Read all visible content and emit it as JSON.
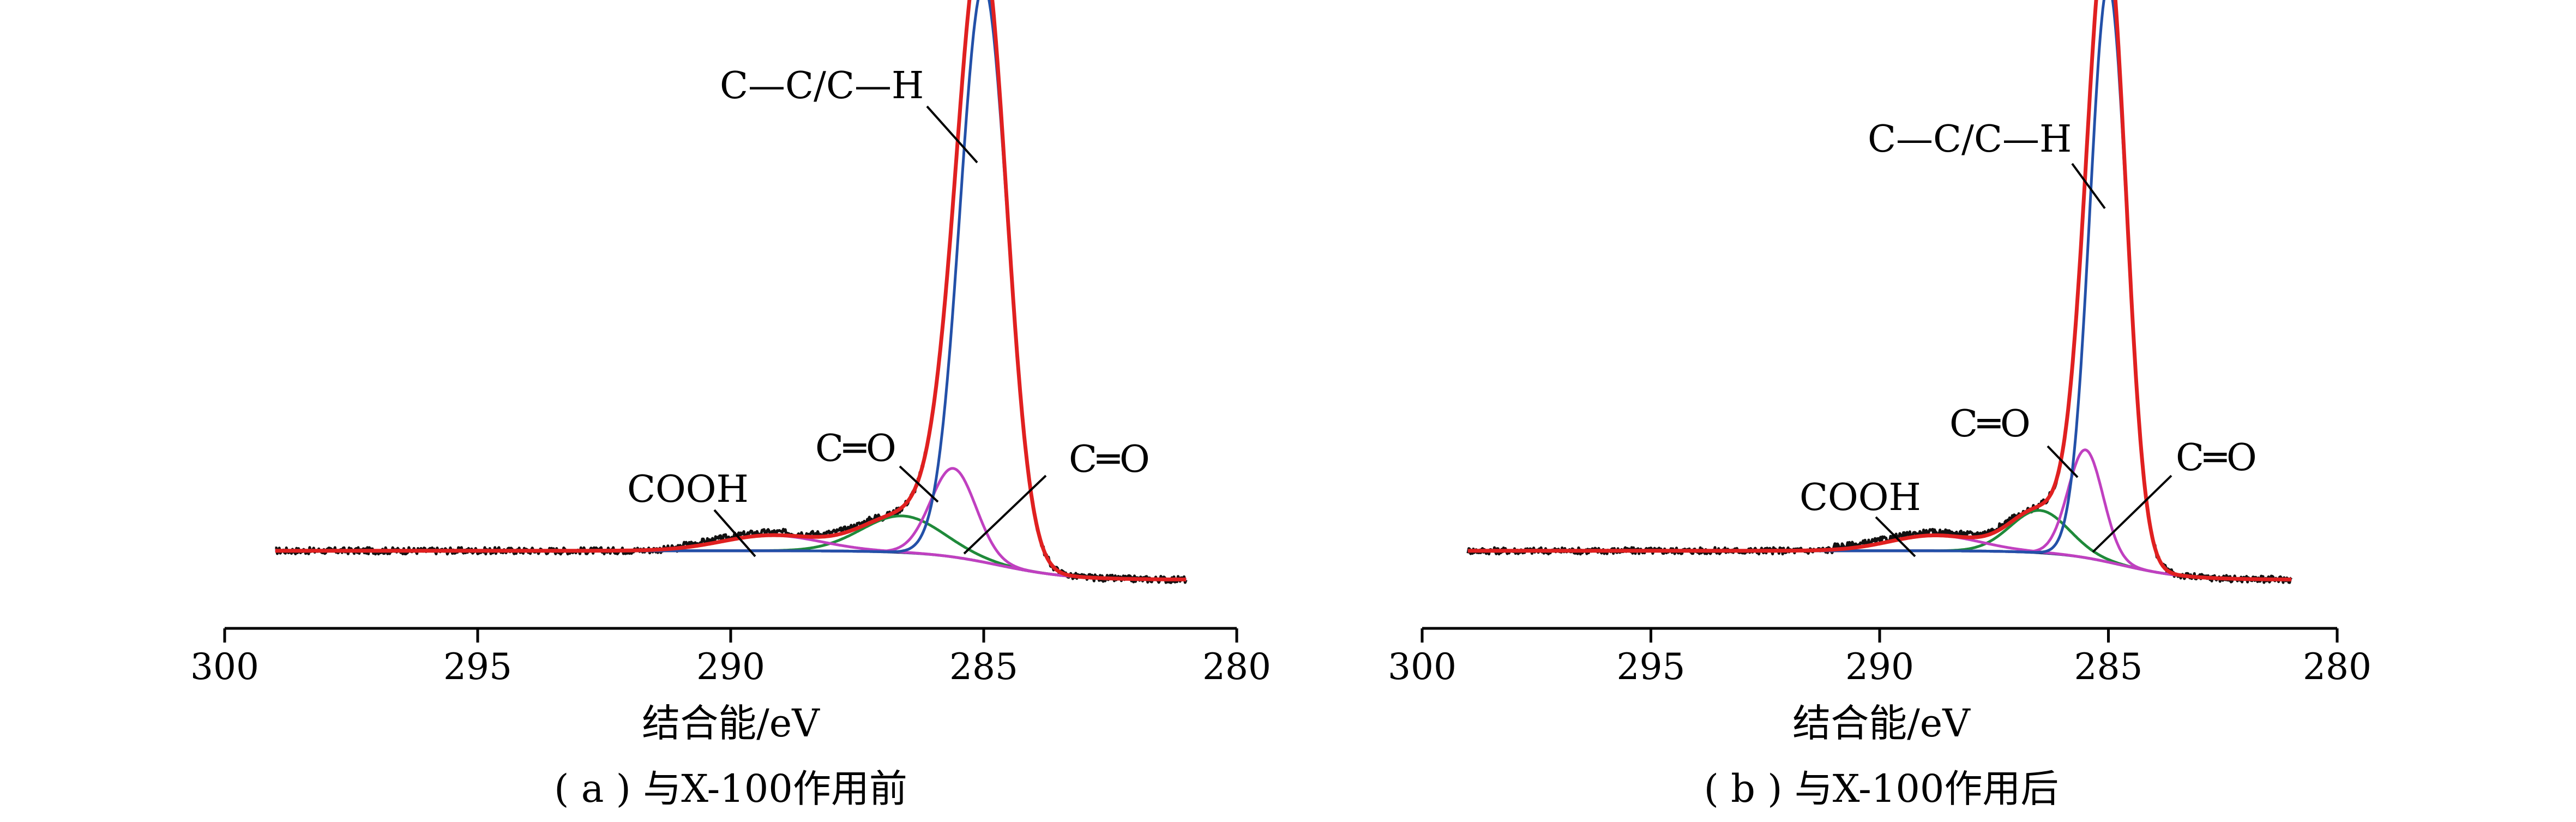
{
  "chart_data": [
    {
      "type": "line",
      "caption": "( a ) 与X-100作用前",
      "xlabel": "结合能/eV",
      "ylabel": "",
      "xlim": [
        300,
        280
      ],
      "x_reversed": true,
      "xticks": [
        "300",
        "295",
        "290",
        "285",
        "280"
      ],
      "grid": false,
      "baseline": {
        "left": 1.0,
        "right": -0.5,
        "center": 284.7,
        "width": 0.7
      },
      "series": [
        {
          "role": "measured",
          "color": "#111111",
          "noise": true
        },
        {
          "role": "envelope",
          "color": "#e02020",
          "components": [
            0,
            1,
            2,
            3
          ]
        },
        {
          "role": "component",
          "color": "#2350a8",
          "center": 285.0,
          "fwhm": 1.1,
          "height": 30.0
        },
        {
          "role": "component",
          "color": "#c040c0",
          "center": 285.6,
          "fwhm": 1.05,
          "height": 4.6
        },
        {
          "role": "component",
          "color": "#1f8a3a",
          "center": 286.6,
          "fwhm": 1.9,
          "height": 1.9
        },
        {
          "role": "component",
          "color": "#c040c0",
          "center": 289.2,
          "fwhm": 2.3,
          "height": 0.8
        }
      ],
      "annotations": [
        {
          "text": "C—C/C—H",
          "x": 285.6,
          "y": 22.0
        },
        {
          "text": "C═O",
          "x": 285.6,
          "y": 4.4
        },
        {
          "text": "C═O",
          "x": 286.0,
          "y": 0.9
        },
        {
          "text": "COOH",
          "x": 288.8,
          "y": 1.2
        }
      ]
    },
    {
      "type": "line",
      "caption": "( b ) 与X-100作用后",
      "xlabel": "结合能/eV",
      "ylabel": "",
      "xlim": [
        300,
        280
      ],
      "x_reversed": true,
      "xticks": [
        "300",
        "295",
        "290",
        "285",
        "280"
      ],
      "grid": false,
      "baseline": {
        "left": 1.0,
        "right": -0.5,
        "center": 284.7,
        "width": 0.7
      },
      "series": [
        {
          "role": "measured",
          "color": "#111111",
          "noise": true
        },
        {
          "role": "envelope",
          "color": "#e02020",
          "components": [
            0,
            1,
            2,
            3
          ]
        },
        {
          "role": "component",
          "color": "#2350a8",
          "center": 285.0,
          "fwhm": 0.95,
          "height": 30.0
        },
        {
          "role": "component",
          "color": "#c040c0",
          "center": 285.5,
          "fwhm": 0.9,
          "height": 5.6
        },
        {
          "role": "component",
          "color": "#1f8a3a",
          "center": 286.5,
          "fwhm": 1.5,
          "height": 2.2
        },
        {
          "role": "component",
          "color": "#c040c0",
          "center": 288.8,
          "fwhm": 2.3,
          "height": 0.8
        }
      ],
      "annotations": [
        {
          "text": "C—C/C—H",
          "x": 285.2,
          "y": 22.0
        },
        {
          "text": "C═O",
          "x": 285.4,
          "y": 5.4
        },
        {
          "text": "C═O",
          "x": 285.9,
          "y": 1.0
        },
        {
          "text": "COOH",
          "x": 288.8,
          "y": 1.4
        }
      ]
    }
  ]
}
